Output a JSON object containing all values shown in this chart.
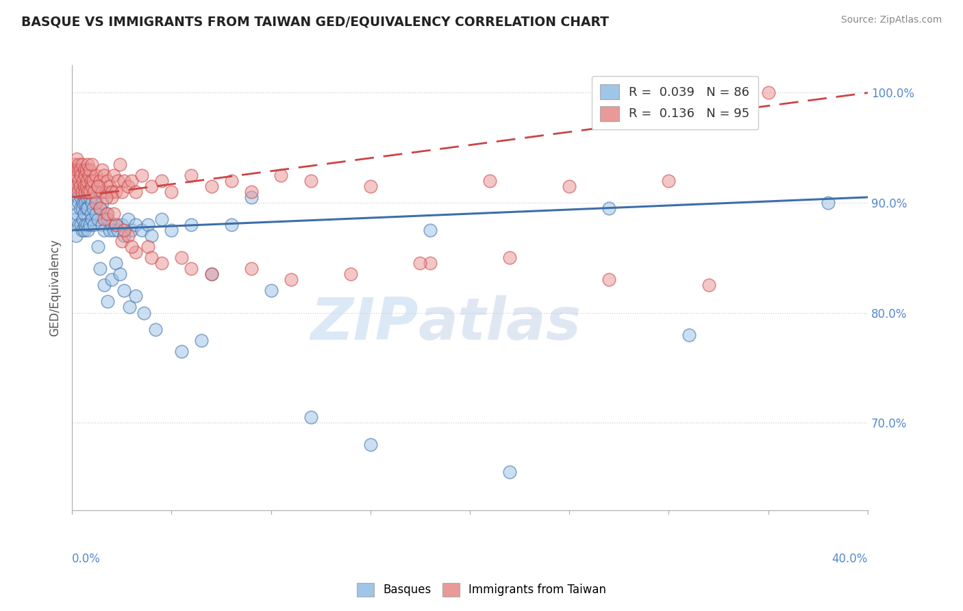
{
  "title": "BASQUE VS IMMIGRANTS FROM TAIWAN GED/EQUIVALENCY CORRELATION CHART",
  "source": "Source: ZipAtlas.com",
  "ylabel": "GED/Equivalency",
  "xmin": 0.0,
  "xmax": 40.0,
  "ymin": 62.0,
  "ymax": 102.5,
  "yticks": [
    100.0,
    90.0,
    80.0,
    70.0
  ],
  "ytick_labels": [
    "100.0%",
    "90.0%",
    "80.0%",
    "70.0%"
  ],
  "legend_r1": "R =  0.039",
  "legend_n1": "N = 86",
  "legend_r2": "R =  0.136",
  "legend_n2": "N = 95",
  "blue_color": "#9fc5e8",
  "pink_color": "#ea9999",
  "blue_line_color": "#3d6ea8",
  "pink_line_color": "#cc4444",
  "background_color": "#ffffff",
  "watermark_zip": "ZIP",
  "watermark_atlas": "atlas",
  "blue_scatter_x": [
    0.15,
    0.2,
    0.25,
    0.3,
    0.3,
    0.35,
    0.35,
    0.4,
    0.4,
    0.45,
    0.45,
    0.5,
    0.5,
    0.5,
    0.55,
    0.55,
    0.6,
    0.6,
    0.6,
    0.65,
    0.65,
    0.7,
    0.7,
    0.75,
    0.75,
    0.8,
    0.8,
    0.85,
    0.9,
    0.9,
    0.95,
    1.0,
    1.0,
    1.05,
    1.1,
    1.15,
    1.2,
    1.2,
    1.3,
    1.4,
    1.5,
    1.5,
    1.6,
    1.7,
    1.8,
    1.9,
    2.0,
    2.1,
    2.2,
    2.3,
    2.5,
    2.6,
    2.8,
    3.0,
    3.2,
    3.5,
    3.8,
    4.0,
    4.5,
    5.0,
    6.0,
    7.0,
    8.0,
    9.0,
    10.0,
    12.0,
    15.0,
    18.0,
    22.0,
    27.0,
    31.0,
    38.0,
    1.3,
    1.4,
    1.6,
    1.8,
    2.0,
    2.2,
    2.4,
    2.6,
    2.9,
    3.2,
    3.6,
    4.2,
    5.5,
    6.5
  ],
  "blue_scatter_y": [
    88.5,
    87.0,
    89.0,
    90.5,
    91.5,
    88.0,
    90.0,
    89.5,
    91.0,
    88.0,
    90.5,
    87.5,
    89.5,
    91.0,
    88.5,
    90.0,
    89.0,
    90.5,
    87.5,
    88.0,
    90.0,
    89.5,
    91.0,
    88.0,
    90.5,
    87.5,
    89.5,
    91.0,
    88.0,
    90.5,
    89.0,
    88.5,
    90.0,
    89.5,
    88.0,
    90.5,
    89.0,
    91.0,
    88.5,
    89.5,
    88.0,
    90.0,
    87.5,
    89.0,
    88.5,
    87.5,
    88.0,
    87.5,
    88.0,
    87.5,
    88.0,
    87.0,
    88.5,
    87.5,
    88.0,
    87.5,
    88.0,
    87.0,
    88.5,
    87.5,
    88.0,
    83.5,
    88.0,
    90.5,
    82.0,
    70.5,
    68.0,
    87.5,
    65.5,
    89.5,
    78.0,
    90.0,
    86.0,
    84.0,
    82.5,
    81.0,
    83.0,
    84.5,
    83.5,
    82.0,
    80.5,
    81.5,
    80.0,
    78.5,
    76.5,
    77.5
  ],
  "pink_scatter_x": [
    0.1,
    0.15,
    0.2,
    0.2,
    0.25,
    0.25,
    0.3,
    0.3,
    0.35,
    0.35,
    0.4,
    0.4,
    0.45,
    0.5,
    0.5,
    0.55,
    0.6,
    0.6,
    0.65,
    0.65,
    0.7,
    0.7,
    0.75,
    0.8,
    0.8,
    0.85,
    0.9,
    0.9,
    0.95,
    1.0,
    1.0,
    1.05,
    1.1,
    1.2,
    1.3,
    1.4,
    1.5,
    1.5,
    1.6,
    1.7,
    1.8,
    1.9,
    2.0,
    2.1,
    2.2,
    2.3,
    2.4,
    2.5,
    2.6,
    2.8,
    3.0,
    3.2,
    3.5,
    4.0,
    4.5,
    5.0,
    6.0,
    7.0,
    8.0,
    9.0,
    10.5,
    12.0,
    15.0,
    18.0,
    21.0,
    25.0,
    30.0,
    35.0,
    1.2,
    1.4,
    1.6,
    1.8,
    2.0,
    2.2,
    2.5,
    2.8,
    3.2,
    3.8,
    4.5,
    5.5,
    7.0,
    9.0,
    11.0,
    14.0,
    17.5,
    22.0,
    27.0,
    32.0,
    1.3,
    1.7,
    2.1,
    2.6,
    3.0,
    4.0,
    6.0
  ],
  "pink_scatter_y": [
    93.5,
    92.0,
    93.0,
    91.5,
    92.5,
    94.0,
    91.0,
    93.0,
    92.0,
    93.5,
    91.5,
    93.0,
    92.5,
    91.0,
    93.5,
    92.0,
    91.5,
    93.0,
    92.5,
    91.0,
    93.0,
    91.5,
    92.0,
    93.5,
    91.0,
    92.5,
    91.0,
    93.0,
    92.0,
    91.5,
    93.5,
    92.0,
    91.0,
    92.5,
    91.5,
    92.0,
    91.0,
    93.0,
    92.5,
    91.0,
    92.0,
    91.5,
    91.0,
    92.5,
    91.0,
    92.0,
    93.5,
    91.0,
    92.0,
    91.5,
    92.0,
    91.0,
    92.5,
    91.5,
    92.0,
    91.0,
    92.5,
    91.5,
    92.0,
    91.0,
    92.5,
    92.0,
    91.5,
    84.5,
    92.0,
    91.5,
    92.0,
    100.0,
    90.0,
    89.5,
    88.5,
    89.0,
    90.5,
    88.0,
    86.5,
    87.0,
    85.5,
    86.0,
    84.5,
    85.0,
    83.5,
    84.0,
    83.0,
    83.5,
    84.5,
    85.0,
    83.0,
    82.5,
    91.5,
    90.5,
    89.0,
    87.5,
    86.0,
    85.0,
    84.0
  ]
}
